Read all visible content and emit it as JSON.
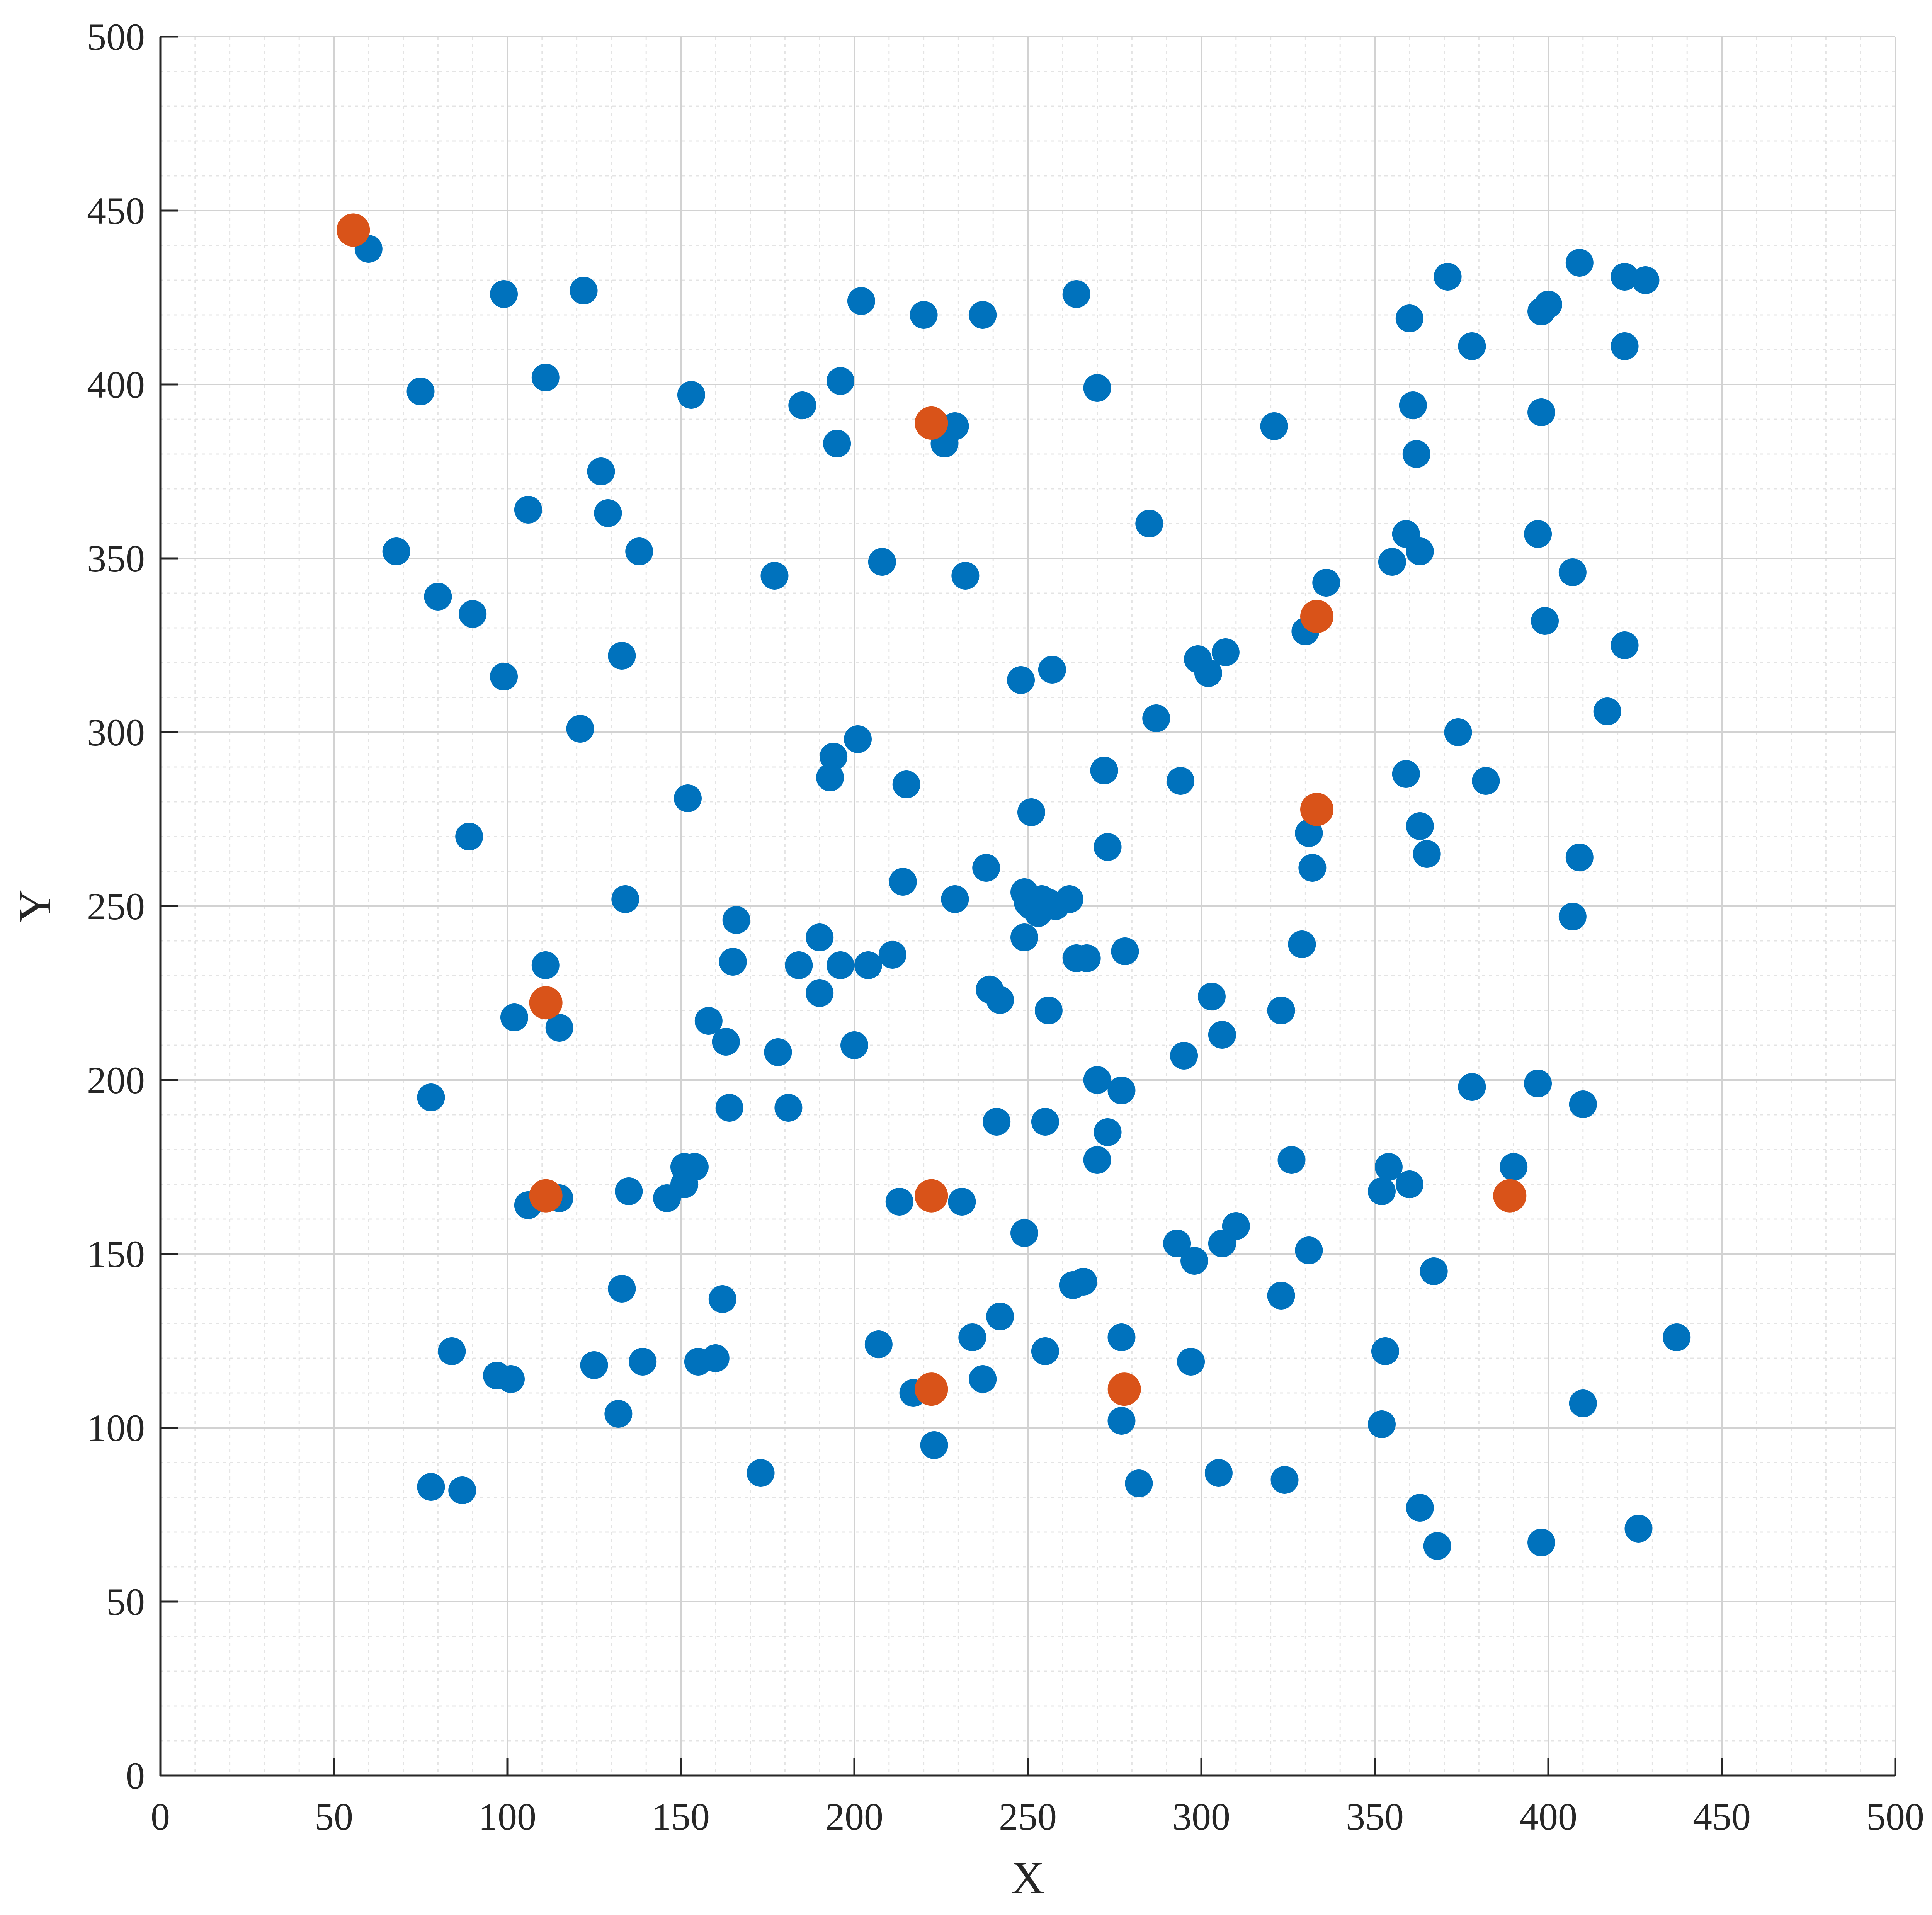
{
  "chart_data": {
    "type": "scatter",
    "xlabel": "X",
    "ylabel": "Y",
    "xlim": [
      0,
      500
    ],
    "ylim": [
      0,
      500
    ],
    "xticks": [
      0,
      50,
      100,
      150,
      200,
      250,
      300,
      350,
      400,
      450,
      500
    ],
    "yticks": [
      0,
      50,
      100,
      150,
      200,
      250,
      300,
      350,
      400,
      450,
      500
    ],
    "grid": true,
    "minor_grid": true,
    "series": [
      {
        "color": "#0072BD",
        "marker": "filled-circle",
        "points": [
          [
            60,
            439
          ],
          [
            99,
            426
          ],
          [
            122,
            427
          ],
          [
            202,
            424
          ],
          [
            220,
            420
          ],
          [
            237,
            420
          ],
          [
            264,
            426
          ],
          [
            371,
            431
          ],
          [
            409,
            435
          ],
          [
            422,
            431
          ],
          [
            428,
            430
          ],
          [
            360,
            419
          ],
          [
            378,
            411
          ],
          [
            398,
            421
          ],
          [
            400,
            423
          ],
          [
            422,
            411
          ],
          [
            75,
            398
          ],
          [
            111,
            402
          ],
          [
            153,
            397
          ],
          [
            185,
            394
          ],
          [
            196,
            401
          ],
          [
            270,
            399
          ],
          [
            361,
            394
          ],
          [
            398,
            392
          ],
          [
            195,
            383
          ],
          [
            229,
            388
          ],
          [
            226,
            383
          ],
          [
            321,
            388
          ],
          [
            362,
            380
          ],
          [
            127,
            375
          ],
          [
            106,
            364
          ],
          [
            129,
            363
          ],
          [
            285,
            360
          ],
          [
            68,
            352
          ],
          [
            138,
            352
          ],
          [
            177,
            345
          ],
          [
            208,
            349
          ],
          [
            232,
            345
          ],
          [
            359,
            357
          ],
          [
            363,
            352
          ],
          [
            355,
            349
          ],
          [
            397,
            357
          ],
          [
            336,
            343
          ],
          [
            407,
            346
          ],
          [
            80,
            339
          ],
          [
            90,
            334
          ],
          [
            330,
            329
          ],
          [
            399,
            332
          ],
          [
            422,
            325
          ],
          [
            133,
            322
          ],
          [
            99,
            316
          ],
          [
            248,
            315
          ],
          [
            257,
            318
          ],
          [
            299,
            321
          ],
          [
            302,
            317
          ],
          [
            307,
            323
          ],
          [
            121,
            301
          ],
          [
            201,
            298
          ],
          [
            287,
            304
          ],
          [
            374,
            300
          ],
          [
            417,
            306
          ],
          [
            194,
            293
          ],
          [
            193,
            287
          ],
          [
            215,
            285
          ],
          [
            272,
            289
          ],
          [
            294,
            286
          ],
          [
            359,
            288
          ],
          [
            382,
            286
          ],
          [
            152,
            281
          ],
          [
            251,
            277
          ],
          [
            89,
            270
          ],
          [
            363,
            273
          ],
          [
            273,
            267
          ],
          [
            331,
            271
          ],
          [
            365,
            265
          ],
          [
            409,
            264
          ],
          [
            332,
            261
          ],
          [
            214,
            257
          ],
          [
            238,
            261
          ],
          [
            134,
            252
          ],
          [
            229,
            252
          ],
          [
            249,
            254
          ],
          [
            250,
            251
          ],
          [
            251,
            250
          ],
          [
            253,
            248
          ],
          [
            254,
            252
          ],
          [
            256,
            251
          ],
          [
            258,
            250
          ],
          [
            262,
            252
          ],
          [
            166,
            246
          ],
          [
            190,
            241
          ],
          [
            211,
            236
          ],
          [
            249,
            241
          ],
          [
            407,
            247
          ],
          [
            111,
            233
          ],
          [
            165,
            234
          ],
          [
            184,
            233
          ],
          [
            196,
            233
          ],
          [
            204,
            233
          ],
          [
            264,
            235
          ],
          [
            267,
            235
          ],
          [
            278,
            237
          ],
          [
            329,
            239
          ],
          [
            102,
            218
          ],
          [
            115,
            215
          ],
          [
            239,
            226
          ],
          [
            242,
            223
          ],
          [
            190,
            225
          ],
          [
            256,
            220
          ],
          [
            303,
            224
          ],
          [
            158,
            217
          ],
          [
            163,
            211
          ],
          [
            178,
            208
          ],
          [
            200,
            210
          ],
          [
            295,
            207
          ],
          [
            306,
            213
          ],
          [
            323,
            220
          ],
          [
            78,
            195
          ],
          [
            164,
            192
          ],
          [
            181,
            192
          ],
          [
            270,
            200
          ],
          [
            277,
            197
          ],
          [
            241,
            188
          ],
          [
            255,
            188
          ],
          [
            273,
            185
          ],
          [
            270,
            177
          ],
          [
            378,
            198
          ],
          [
            397,
            199
          ],
          [
            410,
            193
          ],
          [
            151,
            175
          ],
          [
            154,
            175
          ],
          [
            151,
            170
          ],
          [
            135,
            168
          ],
          [
            146,
            166
          ],
          [
            106,
            164
          ],
          [
            115,
            166
          ],
          [
            213,
            165
          ],
          [
            231,
            165
          ],
          [
            326,
            177
          ],
          [
            354,
            175
          ],
          [
            360,
            170
          ],
          [
            352,
            168
          ],
          [
            390,
            175
          ],
          [
            249,
            156
          ],
          [
            293,
            153
          ],
          [
            298,
            148
          ],
          [
            306,
            153
          ],
          [
            310,
            158
          ],
          [
            331,
            151
          ],
          [
            367,
            145
          ],
          [
            133,
            140
          ],
          [
            162,
            137
          ],
          [
            263,
            141
          ],
          [
            266,
            142
          ],
          [
            323,
            138
          ],
          [
            84,
            122
          ],
          [
            97,
            115
          ],
          [
            101,
            114
          ],
          [
            125,
            118
          ],
          [
            139,
            119
          ],
          [
            155,
            119
          ],
          [
            160,
            120
          ],
          [
            207,
            124
          ],
          [
            234,
            126
          ],
          [
            242,
            132
          ],
          [
            255,
            122
          ],
          [
            277,
            126
          ],
          [
            297,
            119
          ],
          [
            353,
            122
          ],
          [
            437,
            126
          ],
          [
            217,
            110
          ],
          [
            237,
            114
          ],
          [
            132,
            104
          ],
          [
            223,
            95
          ],
          [
            277,
            102
          ],
          [
            352,
            101
          ],
          [
            410,
            107
          ],
          [
            173,
            87
          ],
          [
            78,
            83
          ],
          [
            87,
            82
          ],
          [
            282,
            84
          ],
          [
            305,
            87
          ],
          [
            324,
            85
          ],
          [
            363,
            77
          ],
          [
            368,
            66
          ],
          [
            398,
            67
          ],
          [
            426,
            71
          ]
        ]
      },
      {
        "color": "#D95319",
        "marker": "filled-circle",
        "points": [
          [
            55.6,
            444.4
          ],
          [
            222.2,
            388.9
          ],
          [
            333.3,
            333.3
          ],
          [
            333.3,
            277.8
          ],
          [
            111.1,
            222.2
          ],
          [
            111.1,
            166.7
          ],
          [
            222.2,
            166.7
          ],
          [
            388.9,
            166.7
          ],
          [
            222.2,
            111.1
          ],
          [
            277.8,
            111.1
          ]
        ]
      }
    ]
  }
}
